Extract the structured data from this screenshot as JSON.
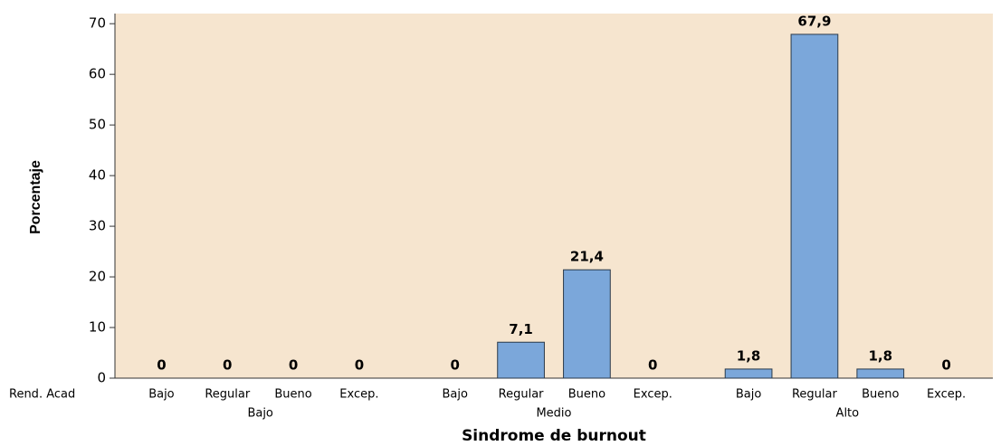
{
  "chart_data": {
    "type": "bar",
    "x_label": "Sindrome de burnout",
    "y_label": "Porcentaje",
    "row_label": "Rend. Acad",
    "groups": [
      {
        "name": "Bajo",
        "categories": [
          "Bajo",
          "Regular",
          "Bueno",
          "Excep."
        ],
        "values": [
          0,
          0,
          0,
          0
        ],
        "value_labels": [
          "0",
          "0",
          "0",
          "0"
        ]
      },
      {
        "name": "Medio",
        "categories": [
          "Bajo",
          "Regular",
          "Bueno",
          "Excep."
        ],
        "values": [
          0,
          7.1,
          21.4,
          0
        ],
        "value_labels": [
          "0",
          "7,1",
          "21,4",
          "0"
        ]
      },
      {
        "name": "Alto",
        "categories": [
          "Bajo",
          "Regular",
          "Bueno",
          "Excep."
        ],
        "values": [
          1.8,
          67.9,
          1.8,
          0
        ],
        "value_labels": [
          "1,8",
          "67,9",
          "1,8",
          "0"
        ]
      }
    ],
    "color": "#7ba7da",
    "ylim": [
      0,
      72
    ],
    "yticks": [
      0,
      10,
      20,
      30,
      40,
      50,
      60,
      70
    ],
    "grid": false
  }
}
